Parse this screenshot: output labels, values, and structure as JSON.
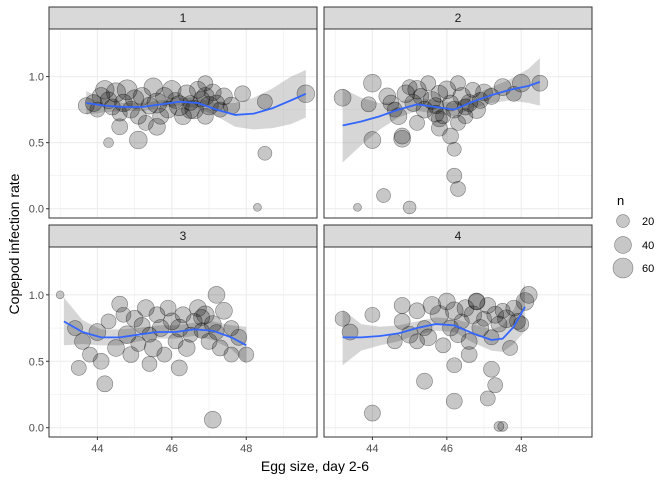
{
  "chart_data": {
    "type": "scatter",
    "xlabel": "Egg size, day 2-6",
    "ylabel": "Copepod infection rate",
    "xlim": [
      42.7,
      49.9
    ],
    "ylim": [
      -0.07,
      1.36
    ],
    "x_ticks": [
      44,
      46,
      48
    ],
    "x_tick_labels": [
      "44",
      "46",
      "48"
    ],
    "y_ticks": [
      0,
      0.5,
      1
    ],
    "y_tick_labels": [
      "0.0",
      "0.5",
      "1.0"
    ],
    "point_color": "#000000",
    "point_alpha": 0.22,
    "smooth_color": "#3366ff",
    "ribbon_color": "#999999",
    "legend": {
      "title": "n",
      "placement": "right",
      "entries": [
        {
          "label": "20",
          "n": 20
        },
        {
          "label": "40",
          "n": 40
        },
        {
          "label": "60",
          "n": 60
        }
      ]
    },
    "facets": [
      {
        "label": "1",
        "points": [
          [
            43.7,
            0.78,
            35
          ],
          [
            43.9,
            0.8,
            40
          ],
          [
            44.0,
            0.75,
            30
          ],
          [
            44.1,
            0.85,
            45
          ],
          [
            44.2,
            0.9,
            50
          ],
          [
            44.3,
            0.82,
            40
          ],
          [
            44.4,
            0.77,
            35
          ],
          [
            44.5,
            0.88,
            55
          ],
          [
            44.6,
            0.72,
            30
          ],
          [
            44.7,
            0.8,
            45
          ],
          [
            44.8,
            0.9,
            60
          ],
          [
            44.9,
            0.75,
            40
          ],
          [
            45.0,
            0.83,
            50
          ],
          [
            45.1,
            0.7,
            35
          ],
          [
            45.2,
            0.85,
            45
          ],
          [
            45.3,
            0.65,
            30
          ],
          [
            45.4,
            0.78,
            40
          ],
          [
            45.5,
            0.92,
            50
          ],
          [
            45.6,
            0.8,
            60
          ],
          [
            45.7,
            0.7,
            35
          ],
          [
            45.8,
            0.85,
            45
          ],
          [
            45.9,
            0.75,
            40
          ],
          [
            46.0,
            0.9,
            50
          ],
          [
            46.1,
            0.82,
            35
          ],
          [
            46.2,
            0.78,
            60
          ],
          [
            46.3,
            0.7,
            40
          ],
          [
            46.4,
            0.87,
            45
          ],
          [
            46.5,
            0.8,
            30
          ],
          [
            46.6,
            0.75,
            50
          ],
          [
            46.7,
            0.9,
            40
          ],
          [
            46.8,
            0.83,
            35
          ],
          [
            46.9,
            0.85,
            45
          ],
          [
            47.0,
            0.78,
            50
          ],
          [
            47.1,
            0.88,
            40
          ],
          [
            47.2,
            0.8,
            35
          ],
          [
            47.3,
            0.75,
            30
          ],
          [
            47.4,
            0.85,
            40
          ],
          [
            45.1,
            0.52,
            45
          ],
          [
            44.6,
            0.62,
            35
          ],
          [
            45.6,
            0.62,
            40
          ],
          [
            46.9,
            0.7,
            35
          ],
          [
            46.5,
            0.75,
            45
          ],
          [
            47.9,
            0.87,
            35
          ],
          [
            48.5,
            0.81,
            30
          ],
          [
            49.6,
            0.87,
            45
          ],
          [
            44.3,
            0.5,
            10
          ],
          [
            48.5,
            0.42,
            25
          ],
          [
            48.3,
            0.01,
            5
          ],
          [
            46.9,
            0.95,
            30
          ],
          [
            47.6,
            0.78,
            40
          ]
        ],
        "smooth_x": [
          43.7,
          44.2,
          44.7,
          45.2,
          45.7,
          46.2,
          46.7,
          47.2,
          47.7,
          48.2,
          48.7,
          49.2,
          49.6
        ],
        "smooth_y": [
          0.8,
          0.78,
          0.77,
          0.77,
          0.79,
          0.81,
          0.8,
          0.75,
          0.71,
          0.72,
          0.76,
          0.82,
          0.87
        ],
        "band_lo": [
          0.71,
          0.73,
          0.74,
          0.74,
          0.76,
          0.78,
          0.76,
          0.7,
          0.62,
          0.6,
          0.61,
          0.64,
          0.69
        ],
        "band_hi": [
          0.89,
          0.83,
          0.8,
          0.8,
          0.82,
          0.84,
          0.84,
          0.8,
          0.8,
          0.84,
          0.91,
          1.0,
          1.05
        ]
      },
      {
        "label": "2",
        "points": [
          [
            43.2,
            0.84,
            40
          ],
          [
            43.9,
            0.79,
            30
          ],
          [
            44.0,
            0.95,
            45
          ],
          [
            44.4,
            0.85,
            40
          ],
          [
            44.5,
            0.8,
            35
          ],
          [
            44.6,
            0.75,
            30
          ],
          [
            44.7,
            0.7,
            40
          ],
          [
            44.8,
            0.55,
            35
          ],
          [
            44.9,
            0.87,
            45
          ],
          [
            45.0,
            0.92,
            30
          ],
          [
            45.1,
            0.8,
            40
          ],
          [
            45.2,
            0.9,
            50
          ],
          [
            45.3,
            0.85,
            35
          ],
          [
            45.4,
            0.75,
            40
          ],
          [
            45.5,
            0.95,
            30
          ],
          [
            45.6,
            0.82,
            45
          ],
          [
            45.7,
            0.78,
            35
          ],
          [
            45.8,
            0.87,
            40
          ],
          [
            45.9,
            0.7,
            30
          ],
          [
            46.0,
            0.9,
            45
          ],
          [
            46.1,
            0.8,
            35
          ],
          [
            46.2,
            0.75,
            40
          ],
          [
            46.3,
            0.95,
            30
          ],
          [
            46.4,
            0.85,
            45
          ],
          [
            46.5,
            0.77,
            35
          ],
          [
            46.6,
            0.8,
            40
          ],
          [
            46.7,
            0.9,
            30
          ],
          [
            46.8,
            0.75,
            45
          ],
          [
            46.9,
            0.82,
            35
          ],
          [
            47.0,
            0.88,
            40
          ],
          [
            47.2,
            0.85,
            35
          ],
          [
            47.5,
            0.92,
            40
          ],
          [
            47.8,
            0.87,
            30
          ],
          [
            48.0,
            0.95,
            45
          ],
          [
            48.5,
            0.95,
            35
          ],
          [
            44.8,
            0.53,
            40
          ],
          [
            45.8,
            0.61,
            35
          ],
          [
            45.2,
            0.65,
            30
          ],
          [
            46.1,
            0.55,
            35
          ],
          [
            46.3,
            0.65,
            30
          ],
          [
            46.2,
            0.45,
            25
          ],
          [
            46.2,
            0.25,
            30
          ],
          [
            46.3,
            0.15,
            30
          ],
          [
            44.3,
            0.1,
            25
          ],
          [
            44.0,
            0.52,
            40
          ],
          [
            45.7,
            0.72,
            40
          ],
          [
            45.8,
            0.68,
            35
          ],
          [
            46.5,
            0.7,
            30
          ],
          [
            43.6,
            0.01,
            5
          ],
          [
            45.0,
            0.01,
            20
          ]
        ],
        "smooth_x": [
          43.2,
          43.7,
          44.2,
          44.7,
          45.2,
          45.7,
          46.2,
          46.7,
          47.2,
          47.7,
          48.2,
          48.5
        ],
        "smooth_y": [
          0.63,
          0.66,
          0.7,
          0.75,
          0.79,
          0.77,
          0.75,
          0.81,
          0.86,
          0.9,
          0.93,
          0.96
        ],
        "band_lo": [
          0.35,
          0.48,
          0.6,
          0.69,
          0.74,
          0.72,
          0.7,
          0.76,
          0.8,
          0.82,
          0.8,
          0.78
        ],
        "band_hi": [
          0.91,
          0.84,
          0.8,
          0.81,
          0.84,
          0.82,
          0.8,
          0.86,
          0.92,
          0.98,
          1.06,
          1.14
        ]
      },
      {
        "label": "3",
        "points": [
          [
            43.0,
            1.0,
            5
          ],
          [
            43.4,
            0.75,
            30
          ],
          [
            43.6,
            0.65,
            35
          ],
          [
            43.8,
            0.55,
            30
          ],
          [
            44.0,
            0.72,
            40
          ],
          [
            44.1,
            0.5,
            35
          ],
          [
            44.3,
            0.8,
            30
          ],
          [
            44.5,
            0.6,
            40
          ],
          [
            44.6,
            0.93,
            35
          ],
          [
            44.7,
            0.85,
            30
          ],
          [
            44.8,
            0.7,
            45
          ],
          [
            44.9,
            0.55,
            35
          ],
          [
            45.0,
            0.82,
            40
          ],
          [
            45.1,
            0.63,
            30
          ],
          [
            45.2,
            0.77,
            35
          ],
          [
            45.3,
            0.9,
            40
          ],
          [
            45.4,
            0.7,
            30
          ],
          [
            45.5,
            0.6,
            45
          ],
          [
            45.6,
            0.85,
            35
          ],
          [
            45.7,
            0.75,
            40
          ],
          [
            45.8,
            0.55,
            30
          ],
          [
            45.9,
            0.9,
            35
          ],
          [
            46.0,
            0.8,
            40
          ],
          [
            46.1,
            0.65,
            30
          ],
          [
            46.2,
            0.75,
            45
          ],
          [
            46.3,
            0.85,
            35
          ],
          [
            46.4,
            0.6,
            40
          ],
          [
            46.5,
            0.7,
            30
          ],
          [
            46.6,
            0.8,
            35
          ],
          [
            46.7,
            0.9,
            40
          ],
          [
            46.8,
            0.73,
            30
          ],
          [
            46.9,
            0.85,
            45
          ],
          [
            47.0,
            0.65,
            35
          ],
          [
            47.1,
            0.78,
            40
          ],
          [
            47.2,
            0.72,
            30
          ],
          [
            47.3,
            0.6,
            35
          ],
          [
            47.4,
            0.88,
            40
          ],
          [
            47.6,
            0.75,
            30
          ],
          [
            47.8,
            0.68,
            35
          ],
          [
            48.0,
            0.55,
            30
          ],
          [
            44.2,
            0.33,
            35
          ],
          [
            43.5,
            0.45,
            30
          ],
          [
            45.4,
            0.48,
            30
          ],
          [
            46.2,
            0.45,
            35
          ],
          [
            47.1,
            0.06,
            40
          ],
          [
            47.2,
            1.0,
            40
          ],
          [
            47.6,
            0.55,
            30
          ],
          [
            46.8,
            0.83,
            35
          ]
        ],
        "smooth_x": [
          43.1,
          43.6,
          44.1,
          44.6,
          45.1,
          45.6,
          46.1,
          46.6,
          47.1,
          47.6,
          48.0
        ],
        "smooth_y": [
          0.8,
          0.72,
          0.68,
          0.68,
          0.7,
          0.72,
          0.72,
          0.74,
          0.73,
          0.68,
          0.62
        ],
        "band_lo": [
          0.62,
          0.63,
          0.62,
          0.62,
          0.65,
          0.67,
          0.67,
          0.69,
          0.66,
          0.59,
          0.48
        ],
        "band_hi": [
          0.98,
          0.81,
          0.74,
          0.74,
          0.75,
          0.77,
          0.77,
          0.79,
          0.8,
          0.77,
          0.76
        ]
      },
      {
        "label": "4",
        "points": [
          [
            43.2,
            0.82,
            30
          ],
          [
            43.4,
            0.72,
            35
          ],
          [
            44.0,
            0.85,
            30
          ],
          [
            44.0,
            0.11,
            35
          ],
          [
            44.6,
            0.65,
            30
          ],
          [
            44.8,
            0.8,
            35
          ],
          [
            45.0,
            0.7,
            40
          ],
          [
            45.2,
            0.88,
            35
          ],
          [
            45.4,
            0.75,
            30
          ],
          [
            45.5,
            0.68,
            40
          ],
          [
            45.6,
            0.92,
            45
          ],
          [
            45.8,
            0.85,
            50
          ],
          [
            46.0,
            0.95,
            40
          ],
          [
            46.1,
            0.75,
            35
          ],
          [
            46.2,
            0.88,
            45
          ],
          [
            46.3,
            0.7,
            35
          ],
          [
            46.4,
            0.8,
            30
          ],
          [
            46.5,
            0.9,
            40
          ],
          [
            46.6,
            0.65,
            35
          ],
          [
            46.7,
            0.85,
            45
          ],
          [
            46.8,
            0.95,
            35
          ],
          [
            46.9,
            0.75,
            40
          ],
          [
            47.0,
            0.82,
            30
          ],
          [
            47.1,
            0.92,
            35
          ],
          [
            47.2,
            0.68,
            30
          ],
          [
            47.3,
            0.85,
            40
          ],
          [
            47.4,
            0.78,
            35
          ],
          [
            47.5,
            0.88,
            30
          ],
          [
            47.6,
            0.82,
            45
          ],
          [
            47.8,
            0.9,
            35
          ],
          [
            48.0,
            0.78,
            30
          ],
          [
            48.1,
            0.95,
            45
          ],
          [
            48.2,
            1.0,
            40
          ],
          [
            45.4,
            0.35,
            35
          ],
          [
            46.2,
            0.47,
            30
          ],
          [
            46.2,
            0.2,
            35
          ],
          [
            47.1,
            0.22,
            30
          ],
          [
            47.2,
            0.44,
            35
          ],
          [
            47.3,
            0.32,
            30
          ],
          [
            47.4,
            0.01,
            10
          ],
          [
            47.5,
            0.01,
            10
          ],
          [
            46.6,
            0.55,
            35
          ],
          [
            45.9,
            0.62,
            30
          ],
          [
            47.9,
            0.8,
            35
          ],
          [
            47.7,
            0.6,
            30
          ],
          [
            44.8,
            0.92,
            35
          ],
          [
            46.8,
            0.95,
            40
          ],
          [
            45.2,
            0.65,
            30
          ]
        ],
        "smooth_x": [
          43.2,
          43.7,
          44.2,
          44.7,
          45.2,
          45.7,
          46.2,
          46.7,
          47.2,
          47.5,
          47.8,
          48.1
        ],
        "smooth_y": [
          0.68,
          0.68,
          0.69,
          0.71,
          0.75,
          0.78,
          0.77,
          0.71,
          0.66,
          0.67,
          0.76,
          0.91
        ],
        "band_lo": [
          0.47,
          0.58,
          0.62,
          0.65,
          0.7,
          0.73,
          0.72,
          0.64,
          0.58,
          0.57,
          0.63,
          0.73
        ],
        "band_hi": [
          0.89,
          0.78,
          0.76,
          0.77,
          0.8,
          0.83,
          0.82,
          0.78,
          0.74,
          0.77,
          0.89,
          1.09
        ]
      }
    ]
  }
}
